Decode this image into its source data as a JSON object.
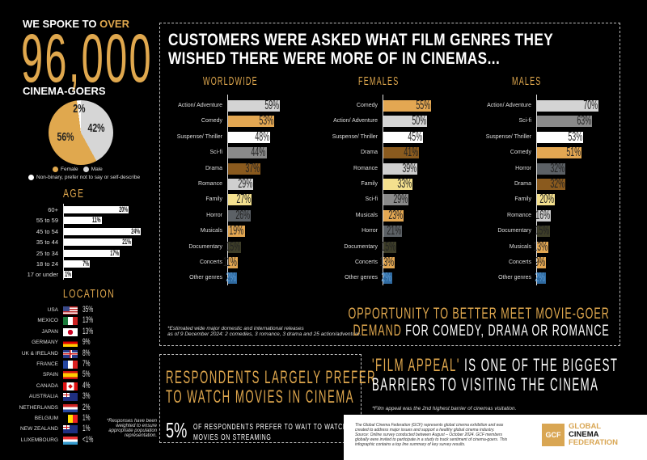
{
  "intro": {
    "line1_a": "WE SPOKE TO ",
    "line1_b": "OVER",
    "big_number": "96,000",
    "line3": "CINEMA-GOERS"
  },
  "legend": {
    "female": "Female",
    "male": "Male",
    "other": "Non-binary, prefer not to say or self-describe"
  },
  "age": {
    "title": "AGE"
  },
  "location": {
    "title": "LOCATION",
    "note": "*Responses have been weighted to ensure appropriate population representation."
  },
  "main": {
    "title_line1": "CUSTOMERS WERE ASKED WHAT FILM GENRES THEY",
    "title_line2": "WISHED THERE WERE MORE OF IN CINEMAS...",
    "footnote_line1": "*Estimated wide major domestic and international releases",
    "footnote_line2": "as of 9 December 2024: 2 comedies, 3 romance, 3 drama and 25 action/adventure.",
    "opportunity_line1": "OPPORTUNITY TO BETTER MEET MOVIE-GOER",
    "opportunity_line2_a": "DEMAND",
    "opportunity_line2_b": " FOR COMEDY, DRAMA OR ROMANCE"
  },
  "preference": {
    "headline_line1": "RESPONDENTS LARGELY PREFER",
    "headline_line2": "TO WATCH MOVIES IN CINEMA",
    "stat": "5%",
    "stat_text_line1": "OF RESPONDENTS PREFER TO WAIT TO WATCH",
    "stat_text_line2": "MOVIES ON STREAMING"
  },
  "film_appeal": {
    "headline_a": "'FILM APPEAL'",
    "headline_b": " IS ONE OF THE BIGGEST",
    "headline_line2": "BARRIERS TO VISITING THE CINEMA",
    "note": "*Film appeal was the 2nd highest barrier of cinemas visitation."
  },
  "footer": {
    "text": "The Global Cinema Federation (GCF) represents global cinema exhibition and was created to address major issues and support a healthy global cinema industry. Source: Online survey conducted between August – October 2024. GCF members globally were invited to participate in a study to track sentiment of cinema-goers. This infographic contains a top line summary of key survey results.",
    "logo_mark": "GCF",
    "logo_line1": "GLOBAL",
    "logo_line2": "CINEMA",
    "logo_line3": "FEDERATION"
  },
  "colors": {
    "accent": "#e0a84e",
    "background": "#000000"
  },
  "genre_colors": {
    "Action/ Adventure": "#d4d4d4",
    "Comedy": "#e3a752",
    "Suspense/ Thriller": "#ffffff",
    "Sci-fi": "#8a8a8a",
    "Drama": "#8a5a1e",
    "Romance": "#cfcfcf",
    "Family": "#f4e08e",
    "Horror": "#5c6166",
    "Musicals": "#e3a752",
    "Documentary": "#3d3d28",
    "Concerts": "#e3a752",
    "Other genres": "#2f6aa0"
  },
  "chart_data": [
    {
      "type": "pie",
      "id": "gender",
      "slices": [
        {
          "label": "Male",
          "value": 42,
          "display": "42%",
          "color": "#d6d6d6"
        },
        {
          "label": "Female",
          "value": 56,
          "display": "56%",
          "color": "#e0a84e"
        },
        {
          "label": "Non-binary, prefer not to say or self-describe",
          "value": 2,
          "display": "2%",
          "color": "#ffffff"
        }
      ]
    },
    {
      "type": "bar",
      "id": "age",
      "title": "AGE",
      "categories": [
        "60+",
        "55 to 59",
        "45 to 54",
        "35 to 44",
        "25 to 34",
        "18 to 24",
        "17 or under"
      ],
      "values": [
        20,
        11,
        24,
        21,
        17,
        7,
        1
      ],
      "labels": [
        "20%",
        "11%",
        "24%",
        "21%",
        "17%",
        "7%",
        "1%"
      ]
    },
    {
      "type": "table",
      "id": "location",
      "title": "LOCATION",
      "categories": [
        "USA",
        "MEXICO",
        "JAPAN",
        "GERMANY",
        "UK & IRELAND",
        "FRANCE",
        "SPAIN",
        "CANADA",
        "AUSTRALIA",
        "NETHERLANDS",
        "BELGIUM",
        "NEW ZEALAND",
        "LUXEMBOURG"
      ],
      "flags": [
        "usa",
        "mexico",
        "japan",
        "germany",
        "uk",
        "france",
        "spain",
        "canada",
        "australia",
        "netherlands",
        "belgium",
        "nz",
        "luxembourg"
      ],
      "labels": [
        "35%",
        "13%",
        "13%",
        "9%",
        "8%",
        "7%",
        "5%",
        "4%",
        "3%",
        "2%",
        "1%",
        "1%",
        "<1%"
      ]
    },
    {
      "type": "bar",
      "id": "worldwide",
      "title": "WORLDWIDE",
      "categories": [
        "Action/ Adventure",
        "Comedy",
        "Suspense/ Thriller",
        "Sci-fi",
        "Drama",
        "Romance",
        "Family",
        "Horror",
        "Musicals",
        "Documentary",
        "Concerts",
        "Other genres"
      ],
      "values": [
        59,
        53,
        48,
        44,
        37,
        29,
        27,
        26,
        19,
        15,
        11,
        2
      ]
    },
    {
      "type": "bar",
      "id": "females",
      "title": "FEMALES",
      "categories": [
        "Comedy",
        "Action/ Adventure",
        "Suspense/ Thriller",
        "Drama",
        "Romance",
        "Family",
        "Sci-fi",
        "Musicals",
        "Horror",
        "Documentary",
        "Concerts",
        "Other genres"
      ],
      "values": [
        55,
        50,
        45,
        41,
        39,
        33,
        29,
        23,
        21,
        15,
        13,
        2
      ]
    },
    {
      "type": "bar",
      "id": "males",
      "title": "MALES",
      "categories": [
        "Action/ Adventure",
        "Sci-fi",
        "Suspense/ Thriller",
        "Comedy",
        "Horror",
        "Drama",
        "Family",
        "Romance",
        "Documentary",
        "Musicals",
        "Concerts",
        "Other genres"
      ],
      "values": [
        70,
        63,
        53,
        51,
        32,
        32,
        20,
        16,
        15,
        13,
        9,
        2
      ]
    }
  ]
}
